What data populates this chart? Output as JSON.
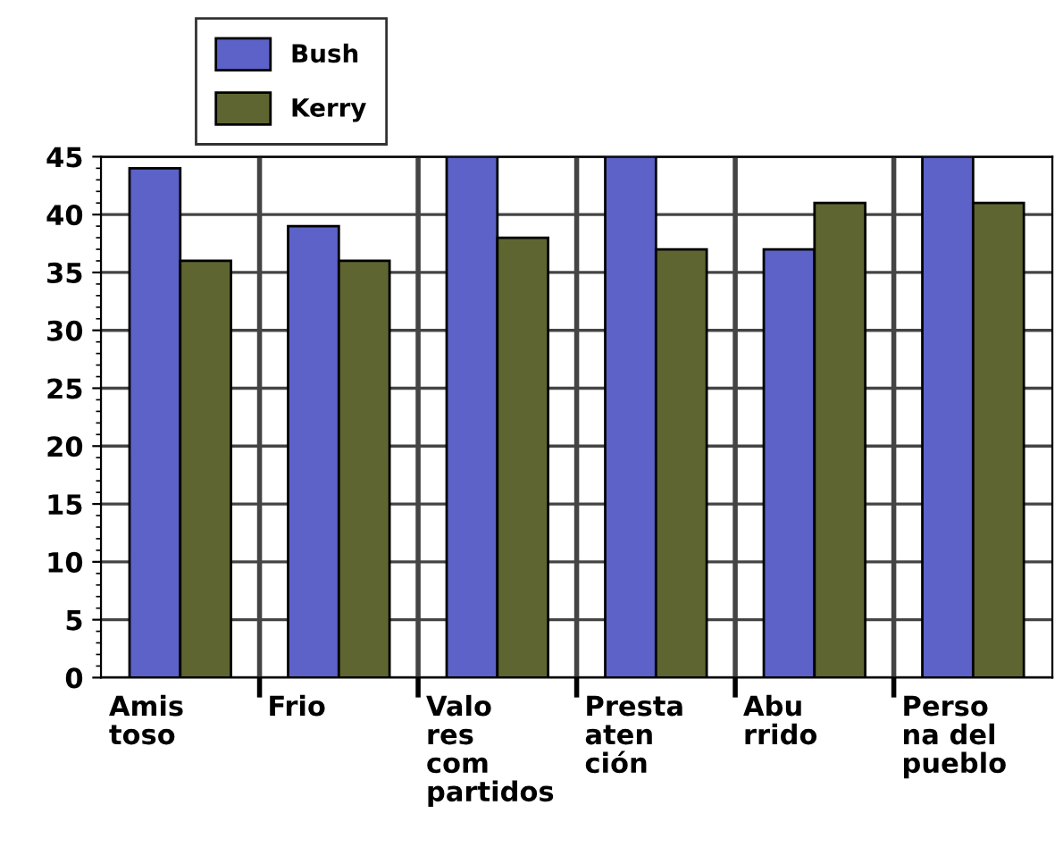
{
  "chart_data": {
    "type": "bar",
    "categories": [
      "Amis\ntoso",
      "Frio",
      "Valo\nres\ncom\npartidos",
      "Presta\naten\nción",
      "Abu\nrrido",
      "Perso\nna del\npueblo"
    ],
    "series": [
      {
        "name": "Bush",
        "color": "#5c62c8",
        "values": [
          44,
          39,
          45,
          45,
          37,
          45
        ]
      },
      {
        "name": "Kerry",
        "color": "#5f6530",
        "values": [
          36,
          36,
          38,
          37,
          41,
          41
        ]
      }
    ],
    "ylim": [
      0,
      45
    ],
    "yticks": [
      0,
      5,
      10,
      15,
      20,
      25,
      30,
      35,
      40,
      45
    ],
    "grid": true,
    "legend": "top left"
  }
}
